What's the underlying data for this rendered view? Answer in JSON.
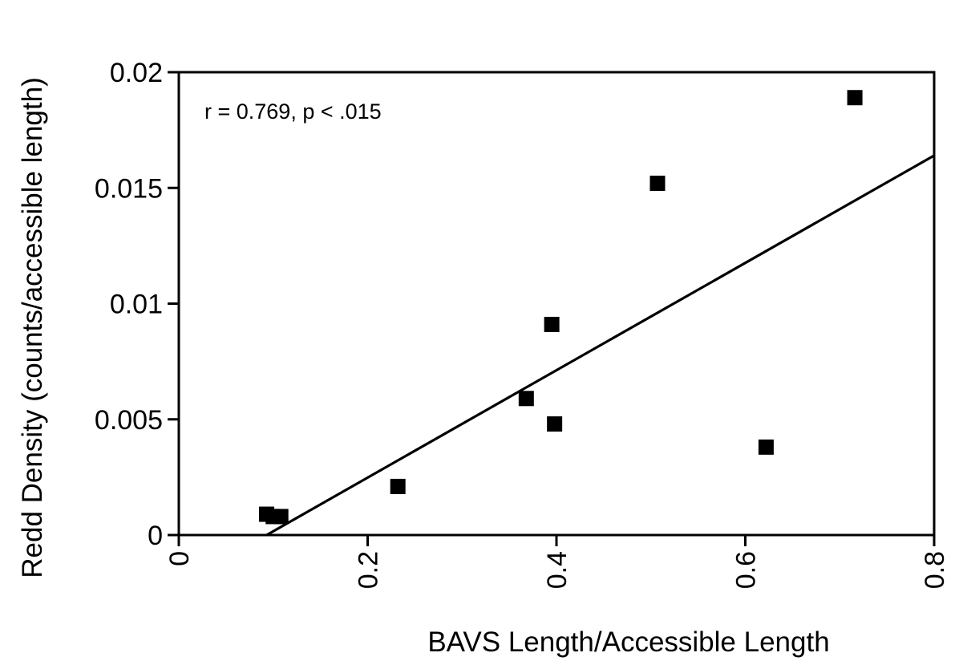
{
  "chart_data": {
    "type": "scatter",
    "title": "",
    "xlabel": "BAVS Length/Accessible Length",
    "ylabel": "Redd Density (counts/accessible length)",
    "xlim": [
      0,
      0.8
    ],
    "ylim": [
      0,
      0.02
    ],
    "xticks": [
      "0",
      "0.2",
      "0.4",
      "0.6",
      "0.8"
    ],
    "yticks": [
      "0",
      "0.005",
      "0.01",
      "0.015",
      "0.02"
    ],
    "annotation": "r = 0.769, p < .015",
    "grid": false,
    "marker": "square",
    "marker_color": "#000000",
    "points": [
      {
        "x": 0.093,
        "y": 0.0009
      },
      {
        "x": 0.1,
        "y": 0.0008
      },
      {
        "x": 0.108,
        "y": 0.0008
      },
      {
        "x": 0.232,
        "y": 0.0021
      },
      {
        "x": 0.368,
        "y": 0.0059
      },
      {
        "x": 0.395,
        "y": 0.0091
      },
      {
        "x": 0.398,
        "y": 0.0048
      },
      {
        "x": 0.507,
        "y": 0.0152
      },
      {
        "x": 0.622,
        "y": 0.0038
      },
      {
        "x": 0.716,
        "y": 0.0189
      }
    ],
    "trendline": {
      "x": [
        0.093,
        0.8
      ],
      "y": [
        0.0,
        0.0164
      ]
    }
  }
}
